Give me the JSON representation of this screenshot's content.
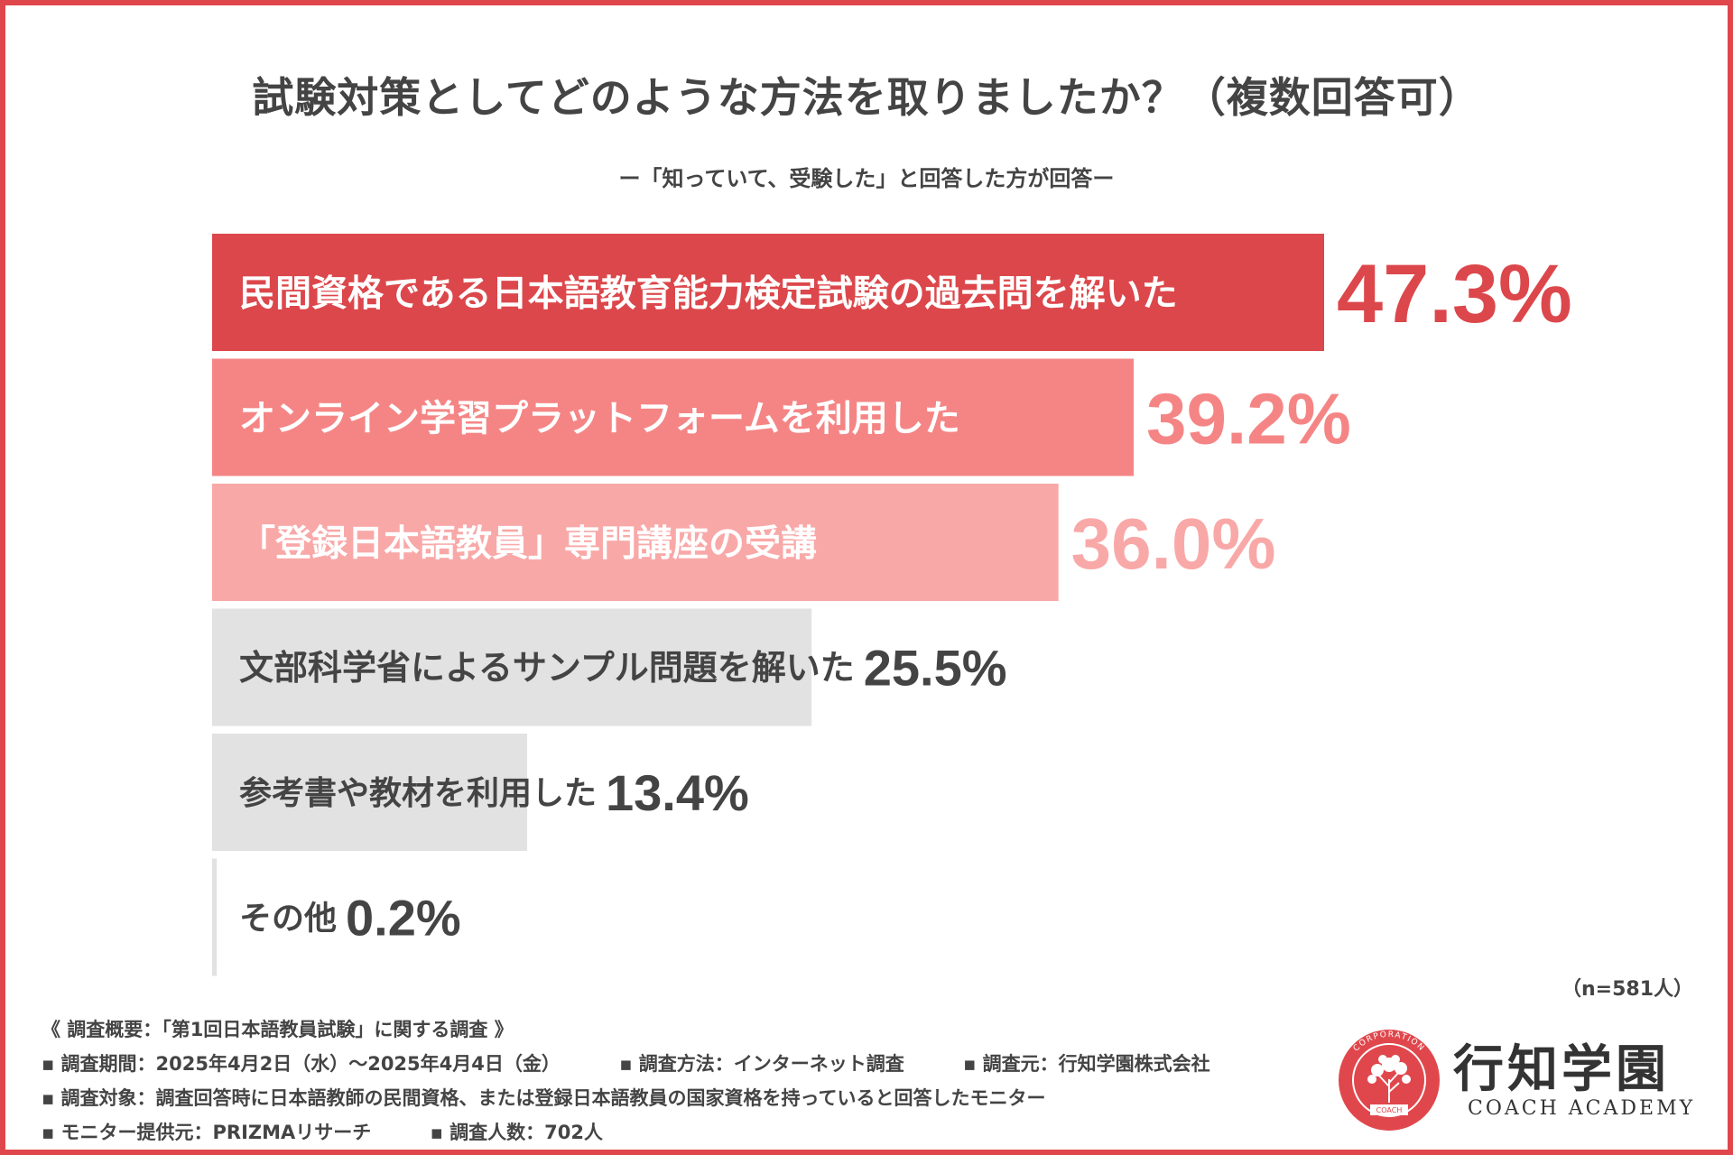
{
  "chart_data": {
    "type": "bar",
    "orientation": "horizontal",
    "title": "試験対策としてどのような方法を取りましたか？（複数回答可）",
    "subtitle": "ー「知っていて、受験した」と回答した方が回答ー",
    "categories": [
      "民間資格である日本語教育能力検定試験の過去問を解いた",
      "オンライン学習プラットフォームを利用した",
      "「登録日本語教員」専門講座の受講",
      "文部科学省によるサンプル問題を解いた",
      "参考書や教材を利用した",
      "その他"
    ],
    "values": [
      47.3,
      39.2,
      36.0,
      25.5,
      13.4,
      0.2
    ],
    "value_labels": [
      "47.3%",
      "39.2%",
      "36.0%",
      "25.5%",
      "13.4%",
      "0.2%"
    ],
    "unit": "%",
    "bar_colors": [
      "#dc474b",
      "#f58585",
      "#f9a8a8",
      "#e2e2e2",
      "#e2e2e2",
      "#e2e2e2"
    ],
    "value_colors": [
      "#dc474b",
      "#f58585",
      "#f9a8a8",
      "#444444",
      "#444444",
      "#444444"
    ],
    "label_colors": [
      "#ffffff",
      "#ffffff",
      "#ffffff",
      "#444444",
      "#444444",
      "#444444"
    ],
    "xlim": [
      0,
      47.3
    ],
    "grid": false,
    "legend": "none",
    "note": "（n=581人）"
  },
  "footer": {
    "survey_title": "《 調査概要：「第1回日本語教員試験」に関する調査 》",
    "period": "▪ 調査期間：2025年4月2日（水）〜2025年4月4日（金）",
    "method": "▪ 調査方法：インターネット調査",
    "source": "▪ 調査元：行知学園株式会社",
    "target": "▪ 調査対象：調査回答時に日本語教師の民間資格、または登録日本語教員の国家資格を持っていると回答したモニター",
    "provider": "▪ モニター提供元：PRIZMAリサーチ",
    "count": "▪ 調査人数：702人"
  },
  "logo": {
    "name": "行知学園",
    "sub": "COACH ACADEMY",
    "ring_text": "CORPORATION",
    "badge_text": "COACH",
    "icon": "tree-seal-icon",
    "color": "#e0474c"
  }
}
